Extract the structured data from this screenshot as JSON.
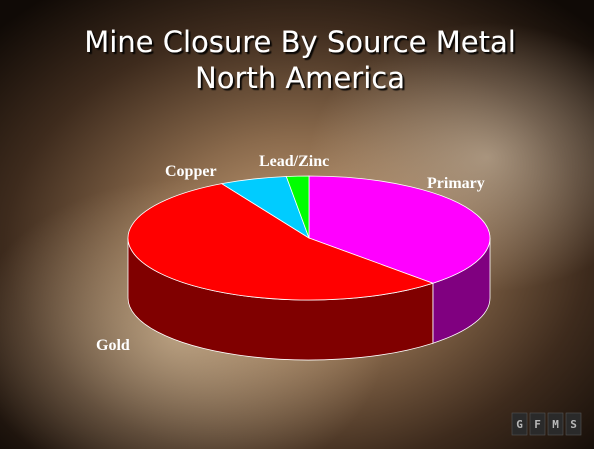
{
  "chart_data": {
    "type": "pie",
    "title": "Mine Closure By Source Metal",
    "subtitle": "North America",
    "categories": [
      "Primary",
      "Gold",
      "Copper",
      "Lead/Zinc"
    ],
    "values": [
      38,
      54,
      6,
      2
    ],
    "colors": [
      "#ff00ff",
      "#ff0000",
      "#00ccff",
      "#00ff00"
    ],
    "side_colors": [
      "#800080",
      "#800000",
      "#006680",
      "#008000"
    ]
  },
  "logo": [
    "G",
    "F",
    "M",
    "S"
  ]
}
